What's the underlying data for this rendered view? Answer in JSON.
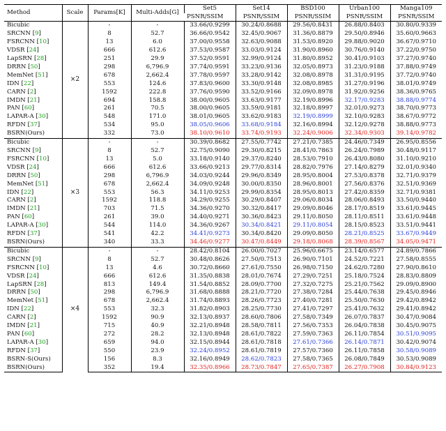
{
  "header": {
    "method": "Method",
    "scale": "Scale",
    "params": "Params[K]",
    "multiadds": "Multi-Adds[G]",
    "datasets": [
      "Set5",
      "Set14",
      "BSD100",
      "Urban100",
      "Manga109"
    ],
    "metric": "PSNR/SSIM"
  },
  "colors": {
    "best": "#e0211d",
    "second": "#2a3fd4",
    "ref": "#1aa11a"
  },
  "groups": [
    {
      "scale": "×2",
      "rows": [
        {
          "name": "Bicubic",
          "ref": "",
          "params": "-",
          "madds": "-",
          "v": [
            "33.66/0.9299",
            "30.24/0.8688",
            "29.56/0.8431",
            "26.88/0.8403",
            "30.80/0.9339"
          ],
          "c": [
            "",
            "",
            "",
            "",
            ""
          ]
        },
        {
          "name": "SRCNN",
          "ref": "9",
          "params": "8",
          "madds": "52.7",
          "v": [
            "36.66/0.9542",
            "32.45/0.9067",
            "31.36/0.8879",
            "29.50/0.8946",
            "35.60/0.9663"
          ],
          "c": [
            "",
            "",
            "",
            "",
            ""
          ]
        },
        {
          "name": "FSRCNN",
          "ref": "10",
          "params": "13",
          "madds": "6.0",
          "v": [
            "37.00/0.9558",
            "32.63/0.9088",
            "31.53/0.8920",
            "29.88/0.9020",
            "36.67/0.9710"
          ],
          "c": [
            "",
            "",
            "",
            "",
            ""
          ]
        },
        {
          "name": "VDSR",
          "ref": "24",
          "params": "666",
          "madds": "612.6",
          "v": [
            "37.53/0.9587",
            "33.03/0.9124",
            "31.90/0.8960",
            "30.76/0.9140",
            "37.22/0.9750"
          ],
          "c": [
            "",
            "",
            "",
            "",
            ""
          ]
        },
        {
          "name": "LapSRN",
          "ref": "28",
          "params": "251",
          "madds": "29.9",
          "v": [
            "37.52/0.9591",
            "32.99/0.9124",
            "31.80/0.8952",
            "30.41/0.9103",
            "37.27/0.9740"
          ],
          "c": [
            "",
            "",
            "",
            "",
            ""
          ]
        },
        {
          "name": "DRRN",
          "ref": "50",
          "params": "298",
          "madds": "6,796.9",
          "v": [
            "37.74/0.9591",
            "33.23/0.9136",
            "32.05/0.8973",
            "31.23/0.9188",
            "37.88/0.9749"
          ],
          "c": [
            "",
            "",
            "",
            "",
            ""
          ]
        },
        {
          "name": "MemNet",
          "ref": "51",
          "params": "678",
          "madds": "2,662.4",
          "v": [
            "37.78/0.9597",
            "33.28/0.9142",
            "32.08/0.8978",
            "31.31/0.9195",
            "37.72/0.9740"
          ],
          "c": [
            "",
            "",
            "",
            "",
            ""
          ]
        },
        {
          "name": "IDN",
          "ref": "22",
          "params": "553",
          "madds": "124.6",
          "v": [
            "37.83/0.9600",
            "33.30/0.9148",
            "32.08/0.8985",
            "31.27/0.9196",
            "38.01/0.9749"
          ],
          "c": [
            "",
            "",
            "",
            "",
            ""
          ]
        },
        {
          "name": "CARN",
          "ref": "2",
          "params": "1592",
          "madds": "222.8",
          "v": [
            "37.76/0.9590",
            "33.52/0.9166",
            "32.09/0.8978",
            "31.92/0.9256",
            "38.36/0.9765"
          ],
          "c": [
            "",
            "",
            "",
            "",
            ""
          ]
        },
        {
          "name": "IMDN",
          "ref": "21",
          "params": "694",
          "madds": "158.8",
          "v": [
            "38.00/0.9605",
            "33.63/0.9177",
            "32.19/0.8996",
            "32.17/0.9283",
            "38.88/0.9774"
          ],
          "c": [
            "",
            "",
            "",
            "blue",
            "blue"
          ]
        },
        {
          "name": "PAN",
          "ref": "60",
          "params": "261",
          "madds": "70.5",
          "v": [
            "38.00/0.9605",
            "33.59/0.9181",
            "32.18/0.8997",
            "32.01/0.9273",
            "38.70/0.9773"
          ],
          "c": [
            "",
            "",
            "",
            "",
            ""
          ]
        },
        {
          "name": "LAPAR-A",
          "ref": "30",
          "params": "548",
          "madds": "171.0",
          "v": [
            "38.01/0.9605",
            "33.62/0.9183",
            "32.19/0.8999",
            "32.10/0.9283",
            "38.67/0.9772"
          ],
          "c": [
            "",
            "",
            "blue",
            "",
            ""
          ]
        },
        {
          "name": "RFDN",
          "ref": "37",
          "params": "534",
          "madds": "95.0",
          "v": [
            "38.05/0.9606",
            "33.68/0.9184",
            "32.16/0.8994",
            "32.12/0.9278",
            "38.88/0.9773"
          ],
          "c": [
            "blue",
            "blue",
            "",
            "",
            ""
          ]
        },
        {
          "name": "BSRN(Ours)",
          "ref": "",
          "params": "332",
          "madds": "73.0",
          "v": [
            "38.10/0.9610",
            "33.74/0.9193",
            "32.24/0.9006",
            "32.34/0.9303",
            "39.14/0.9782"
          ],
          "c": [
            "red",
            "red",
            "red",
            "red",
            "red"
          ]
        }
      ]
    },
    {
      "scale": "×3",
      "rows": [
        {
          "name": "Bicubic",
          "ref": "",
          "params": "-",
          "madds": "-",
          "v": [
            "30.39/0.8682",
            "27.55/0.7742",
            "27.21/0.7385",
            "24.46/0.7349",
            "26.95/0.8556"
          ],
          "c": [
            "",
            "",
            "",
            "",
            ""
          ]
        },
        {
          "name": "SRCNN",
          "ref": "9",
          "params": "8",
          "madds": "52.7",
          "v": [
            "32.75/0.9090",
            "29.30/0.8215",
            "28.41/0.7863",
            "26.24/0.7989",
            "30.48/0.9117"
          ],
          "c": [
            "",
            "",
            "",
            "",
            ""
          ]
        },
        {
          "name": "FSRCNN",
          "ref": "10",
          "params": "13",
          "madds": "5.0",
          "v": [
            "33.18/0.9140",
            "29.37/0.8240",
            "28.53/0.7910",
            "26.43/0.8080",
            "31.10/0.9210"
          ],
          "c": [
            "",
            "",
            "",
            "",
            ""
          ]
        },
        {
          "name": "VDSR",
          "ref": "24",
          "params": "666",
          "madds": "612.6",
          "v": [
            "33.66/0.9213",
            "29.77/0.8314",
            "28.82/0.7976",
            "27.14/0.8279",
            "32.01/0.9340"
          ],
          "c": [
            "",
            "",
            "",
            "",
            ""
          ]
        },
        {
          "name": "DRRN",
          "ref": "50",
          "params": "298",
          "madds": "6,796.9",
          "v": [
            "34.03/0.9244",
            "29.96/0.8349",
            "28.95/0.8004",
            "27.53/0.8378",
            "32.71/0.9379"
          ],
          "c": [
            "",
            "",
            "",
            "",
            ""
          ]
        },
        {
          "name": "MemNet",
          "ref": "51",
          "params": "678",
          "madds": "2,662.4",
          "v": [
            "34.09/0.9248",
            "30.00/0.8350",
            "28.96/0.8001",
            "27.56/0.8376",
            "32.51/0.9369"
          ],
          "c": [
            "",
            "",
            "",
            "",
            ""
          ]
        },
        {
          "name": "IDN",
          "ref": "22",
          "params": "553",
          "madds": "56.3",
          "v": [
            "34.11/0.9253",
            "29.99/0.8354",
            "28.95/0.8013",
            "27.42/0.8359",
            "32.71/0.9381"
          ],
          "c": [
            "",
            "",
            "",
            "",
            ""
          ]
        },
        {
          "name": "CARN",
          "ref": "2",
          "params": "1592",
          "madds": "118.8",
          "v": [
            "34.29/0.9255",
            "30.29/0.8407",
            "29.06/0.8034",
            "28.06/0.8493",
            "33.50/0.9440"
          ],
          "c": [
            "",
            "",
            "",
            "",
            ""
          ]
        },
        {
          "name": "IMDN",
          "ref": "21",
          "params": "703",
          "madds": "71.5",
          "v": [
            "34.36/0.9270",
            "30.32/0.8417",
            "29.09/0.8046",
            "28.17/0.8519",
            "33.61/0.9445"
          ],
          "c": [
            "",
            "",
            "",
            "",
            ""
          ]
        },
        {
          "name": "PAN",
          "ref": "60",
          "params": "261",
          "madds": "39.0",
          "v": [
            "34.40/0.9271",
            "30.36/0.8423",
            "29.11/0.8050",
            "28.11/0.8511",
            "33.61/0.9448"
          ],
          "c": [
            "",
            "",
            "",
            "",
            ""
          ]
        },
        {
          "name": "LAPAR-A",
          "ref": "30",
          "params": "544",
          "madds": "114.0",
          "v": [
            "34.36/0.9267",
            "30.34/0.8421",
            "29.11/0.8054",
            "28.15/0.8523",
            "33.51/0.9441"
          ],
          "c": [
            "",
            "blue",
            "blue",
            "",
            ""
          ]
        },
        {
          "name": "RFDN",
          "ref": "37",
          "params": "541",
          "madds": "42.2",
          "v": [
            "34.41/0.9273",
            "30.34/0.8420",
            "29.09/0.8050",
            "28.21/0.8525",
            "33.67/0.9449"
          ],
          "c": [
            "blue",
            "",
            "",
            "blue",
            "blue"
          ]
        },
        {
          "name": "BSRN(Ours)",
          "ref": "",
          "params": "340",
          "madds": "33.3",
          "v": [
            "34.46/0.9277",
            "30.47/0.8449",
            "29.18/0.8068",
            "28.39/0.8567",
            "34.05/0.9471"
          ],
          "c": [
            "red",
            "red",
            "red",
            "red",
            "red"
          ]
        }
      ]
    },
    {
      "scale": "×4",
      "rows": [
        {
          "name": "Bicubic",
          "ref": "",
          "params": "-",
          "madds": "-",
          "v": [
            "28.42/0.8104",
            "26.00/0.7027",
            "25.96/0.6675",
            "23.14/0.6577",
            "24.89/0.7866"
          ],
          "c": [
            "",
            "",
            "",
            "",
            ""
          ]
        },
        {
          "name": "SRCNN",
          "ref": "9",
          "params": "8",
          "madds": "52.7",
          "v": [
            "30.48/0.8626",
            "27.50/0.7513",
            "26.90/0.7101",
            "24.52/0.7221",
            "27.58/0.8555"
          ],
          "c": [
            "",
            "",
            "",
            "",
            ""
          ]
        },
        {
          "name": "FSRCNN",
          "ref": "10",
          "params": "13",
          "madds": "4.6",
          "v": [
            "30.72/0.8660",
            "27.61/0.7550",
            "26.98/0.7150",
            "24.62/0.7280",
            "27.90/0.8610"
          ],
          "c": [
            "",
            "",
            "",
            "",
            ""
          ]
        },
        {
          "name": "VDSR",
          "ref": "24",
          "params": "666",
          "madds": "612.6",
          "v": [
            "31.35/0.8838",
            "28.01/0.7674",
            "27.29/0.7251",
            "25.18/0.7524",
            "28.83/0.8809"
          ],
          "c": [
            "",
            "",
            "",
            "",
            ""
          ]
        },
        {
          "name": "LapSRN",
          "ref": "28",
          "params": "813",
          "madds": "149.4",
          "v": [
            "31.54/0.8852",
            "28.09/0.7700",
            "27.32/0.7275",
            "25.21/0.7562",
            "29.09/0.8900"
          ],
          "c": [
            "",
            "",
            "",
            "",
            ""
          ]
        },
        {
          "name": "DRRN",
          "ref": "50",
          "params": "298",
          "madds": "6,796.9",
          "v": [
            "31.68/0.8888",
            "28.21/0.7720",
            "27.38/0.7284",
            "25.44/0.7638",
            "29.45/0.8946"
          ],
          "c": [
            "",
            "",
            "",
            "",
            ""
          ]
        },
        {
          "name": "MemNet",
          "ref": "51",
          "params": "678",
          "madds": "2,662.4",
          "v": [
            "31.74/0.8893",
            "28.26/0.7723",
            "27.40/0.7281",
            "25.50/0.7630",
            "29.42/0.8942"
          ],
          "c": [
            "",
            "",
            "",
            "",
            ""
          ]
        },
        {
          "name": "IDN",
          "ref": "22",
          "params": "553",
          "madds": "32.3",
          "v": [
            "31.82/0.8903",
            "28.25/0.7730",
            "27.41/0.7297",
            "25.41/0.7632",
            "29.41/0.8942"
          ],
          "c": [
            "",
            "",
            "",
            "",
            ""
          ]
        },
        {
          "name": "CARN",
          "ref": "2",
          "params": "1592",
          "madds": "90.9",
          "v": [
            "32.13/0.8937",
            "28.60/0.7806",
            "27.58/0.7349",
            "26.07/0.7837",
            "30.47/0.9084"
          ],
          "c": [
            "",
            "",
            "",
            "",
            ""
          ]
        },
        {
          "name": "IMDN",
          "ref": "21",
          "params": "715",
          "madds": "40.9",
          "v": [
            "32.21/0.8948",
            "28.58/0.7811",
            "27.56/0.7353",
            "26.04/0.7838",
            "30.45/0.9075"
          ],
          "c": [
            "",
            "",
            "",
            "",
            ""
          ]
        },
        {
          "name": "PAN",
          "ref": "60",
          "params": "272",
          "madds": "28.2",
          "v": [
            "32.13/0.8948",
            "28.61/0.7822",
            "27.59/0.7363",
            "26.11/0.7854",
            "30.51/0.9095"
          ],
          "c": [
            "",
            "",
            "",
            "",
            "blue"
          ]
        },
        {
          "name": "LAPAR-A",
          "ref": "30",
          "params": "659",
          "madds": "94.0",
          "v": [
            "32.15/0.8944",
            "28.61/0.7818",
            "27.61/0.7366",
            "26.14/0.7871",
            "30.42/0.9074"
          ],
          "c": [
            "",
            "",
            "blue",
            "blue",
            ""
          ]
        },
        {
          "name": "RFDN",
          "ref": "37",
          "params": "550",
          "madds": "23.9",
          "v": [
            "32.24/0.8952",
            "28.61/0.7819",
            "27.57/0.7360",
            "26.11/0.7858",
            "30.58/0.9089"
          ],
          "c": [
            "blue",
            "",
            "",
            "",
            "blue"
          ]
        },
        {
          "name": "BSRN-S(Ours)",
          "ref": "",
          "params": "156",
          "madds": "8.3",
          "v": [
            "32.16/0.8949",
            "28.62/0.7823",
            "27.58/0.7365",
            "26.08/0.7849",
            "30.53/0.9089"
          ],
          "c": [
            "",
            "blue",
            "",
            "",
            ""
          ]
        },
        {
          "name": "BSRN(Ours)",
          "ref": "",
          "params": "352",
          "madds": "19.4",
          "v": [
            "32.35/0.8966",
            "28.73/0.7847",
            "27.65/0.7387",
            "26.27/0.7908",
            "30.84/0.9123"
          ],
          "c": [
            "red",
            "red",
            "red",
            "red",
            "red"
          ]
        }
      ]
    }
  ]
}
